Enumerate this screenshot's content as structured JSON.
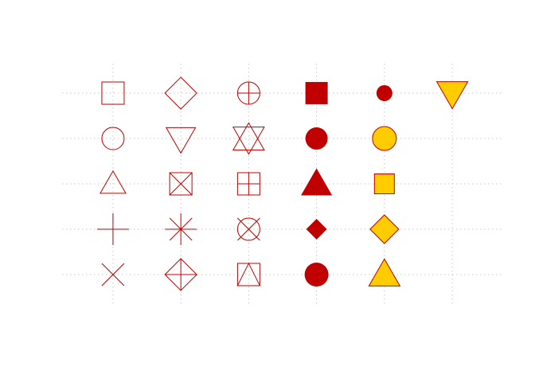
{
  "chart_data": {
    "type": "scatter",
    "title": "",
    "xlabel": "",
    "ylabel": "",
    "grid": true,
    "xlim": [
      0.25,
      6.75
    ],
    "ylim": [
      0.35,
      5.65
    ],
    "colors": {
      "stroke": "#c00000",
      "fill_red": "#c00000",
      "fill_yellow": "#ffcc00",
      "grid": "#c8c8c8"
    },
    "points": [
      {
        "x": 1,
        "y": 5,
        "pch": 0,
        "shape": "open-square"
      },
      {
        "x": 1,
        "y": 4,
        "pch": 1,
        "shape": "open-circle"
      },
      {
        "x": 1,
        "y": 3,
        "pch": 2,
        "shape": "open-triangle-up"
      },
      {
        "x": 1,
        "y": 2,
        "pch": 3,
        "shape": "plus"
      },
      {
        "x": 1,
        "y": 1,
        "pch": 4,
        "shape": "cross"
      },
      {
        "x": 2,
        "y": 5,
        "pch": 5,
        "shape": "open-diamond"
      },
      {
        "x": 2,
        "y": 4,
        "pch": 6,
        "shape": "open-triangle-down"
      },
      {
        "x": 2,
        "y": 3,
        "pch": 7,
        "shape": "square-cross"
      },
      {
        "x": 2,
        "y": 2,
        "pch": 8,
        "shape": "asterisk"
      },
      {
        "x": 2,
        "y": 1,
        "pch": 9,
        "shape": "diamond-plus"
      },
      {
        "x": 3,
        "y": 5,
        "pch": 10,
        "shape": "circle-plus"
      },
      {
        "x": 3,
        "y": 4,
        "pch": 11,
        "shape": "star-of-david"
      },
      {
        "x": 3,
        "y": 3,
        "pch": 12,
        "shape": "square-plus"
      },
      {
        "x": 3,
        "y": 2,
        "pch": 13,
        "shape": "circle-cross"
      },
      {
        "x": 3,
        "y": 1,
        "pch": 14,
        "shape": "square-triangle"
      },
      {
        "x": 4,
        "y": 5,
        "pch": 15,
        "shape": "filled-square"
      },
      {
        "x": 4,
        "y": 4,
        "pch": 16,
        "shape": "filled-circle"
      },
      {
        "x": 4,
        "y": 3,
        "pch": 17,
        "shape": "filled-triangle-up"
      },
      {
        "x": 4,
        "y": 2,
        "pch": 18,
        "shape": "filled-small-diamond"
      },
      {
        "x": 4,
        "y": 1,
        "pch": 19,
        "shape": "filled-circle-large"
      },
      {
        "x": 5,
        "y": 5,
        "pch": 20,
        "shape": "filled-small-circle"
      },
      {
        "x": 5,
        "y": 4,
        "pch": 21,
        "shape": "bg-circle"
      },
      {
        "x": 5,
        "y": 3,
        "pch": 22,
        "shape": "bg-square"
      },
      {
        "x": 5,
        "y": 2,
        "pch": 23,
        "shape": "bg-diamond"
      },
      {
        "x": 5,
        "y": 1,
        "pch": 24,
        "shape": "bg-triangle-up"
      },
      {
        "x": 6,
        "y": 5,
        "pch": 25,
        "shape": "bg-triangle-down"
      }
    ]
  }
}
